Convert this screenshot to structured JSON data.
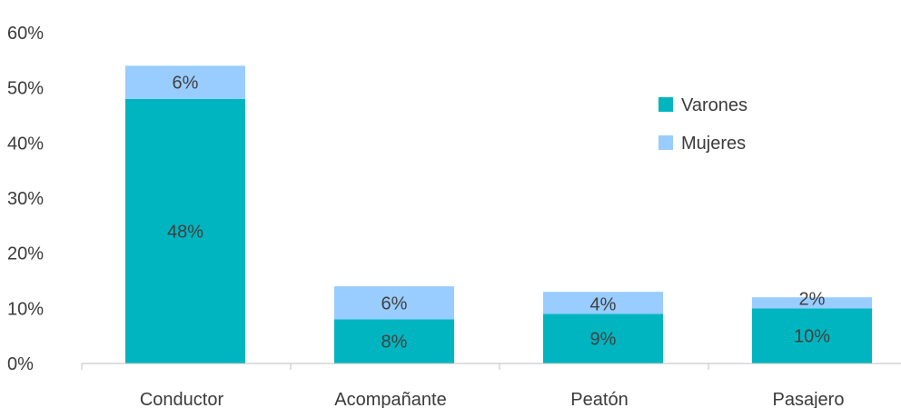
{
  "chart_data": {
    "type": "bar",
    "stacked": true,
    "categories": [
      "Conductor",
      "Acompañante",
      "Peatón",
      "Pasajero"
    ],
    "series": [
      {
        "name": "Varones",
        "color": "#00b5bf",
        "values": [
          48,
          8,
          9,
          10
        ],
        "labels": [
          "48%",
          "8%",
          "9%",
          "10%"
        ]
      },
      {
        "name": "Mujeres",
        "color": "#99ccff",
        "values": [
          6,
          6,
          4,
          2
        ],
        "labels": [
          "6%",
          "6%",
          "4%",
          "2%"
        ]
      }
    ],
    "ylim": [
      0,
      60
    ],
    "yticks": [
      0,
      10,
      20,
      30,
      40,
      50,
      60
    ],
    "ytick_labels": [
      "0%",
      "10%",
      "20%",
      "30%",
      "40%",
      "50%",
      "60%"
    ],
    "legend_position": "right",
    "grid": false
  }
}
